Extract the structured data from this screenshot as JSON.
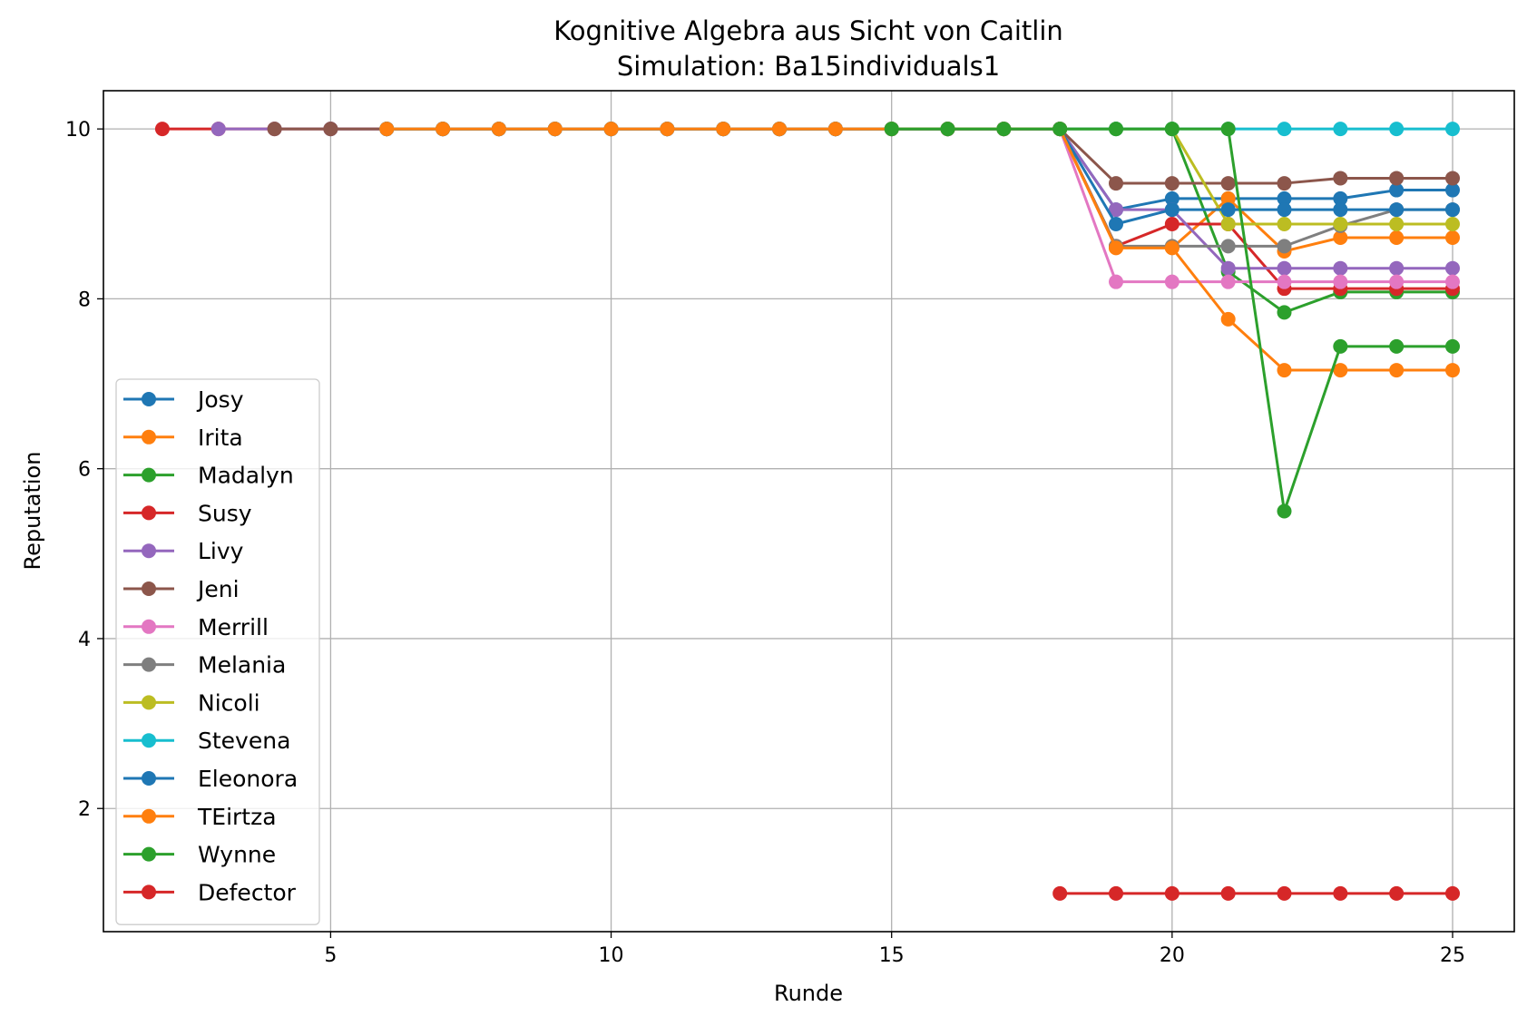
{
  "chart_data": {
    "type": "line",
    "title": "Kognitive Algebra aus Sicht von Caitlin",
    "subtitle": "Simulation: Ba15individuals1",
    "xlabel": "Runde",
    "ylabel": "Reputation",
    "xlim": [
      0.95,
      26.1
    ],
    "ylim": [
      0.55,
      10.45
    ],
    "xticks": [
      5,
      10,
      15,
      20,
      25
    ],
    "yticks": [
      2,
      4,
      6,
      8,
      10
    ],
    "grid": true,
    "legend_position": "lower-left",
    "series": [
      {
        "name": "Josy",
        "color": "#1f77b4",
        "x": [
          5,
          6,
          7,
          8,
          9,
          10,
          11,
          12,
          13,
          14,
          15,
          16,
          17,
          18,
          19,
          20,
          21,
          22,
          23,
          24,
          25
        ],
        "y": [
          10,
          10,
          10,
          10,
          10,
          10,
          10,
          10,
          10,
          10,
          10,
          10,
          10,
          10,
          9.05,
          9.18,
          9.18,
          9.18,
          9.18,
          9.28,
          9.28
        ]
      },
      {
        "name": "Irita",
        "color": "#ff7f0e",
        "x": [
          6,
          7,
          8,
          9,
          10,
          11,
          12,
          13,
          14,
          15,
          16,
          17,
          18,
          19,
          20,
          21,
          22,
          23,
          24,
          25
        ],
        "y": [
          10,
          10,
          10,
          10,
          10,
          10,
          10,
          10,
          10,
          10,
          10,
          10,
          10,
          8.6,
          8.6,
          9.18,
          8.56,
          8.72,
          8.72,
          8.72
        ]
      },
      {
        "name": "Madalyn",
        "color": "#2ca02c",
        "x": [
          15,
          16,
          17,
          18,
          19,
          20,
          21,
          22,
          23,
          24,
          25
        ],
        "y": [
          10,
          10,
          10,
          10,
          10,
          10,
          8.32,
          7.84,
          8.08,
          8.08,
          8.08
        ]
      },
      {
        "name": "Susy",
        "color": "#d62728",
        "x": [
          2,
          3,
          4,
          5,
          6,
          7,
          8,
          9,
          10,
          11,
          12,
          13,
          14,
          15,
          16,
          17,
          18,
          19,
          20,
          21,
          22,
          23,
          24,
          25
        ],
        "y": [
          10,
          10,
          10,
          10,
          10,
          10,
          10,
          10,
          10,
          10,
          10,
          10,
          10,
          10,
          10,
          10,
          10,
          8.62,
          8.88,
          8.88,
          8.12,
          8.12,
          8.12,
          8.12
        ]
      },
      {
        "name": "Livy",
        "color": "#9467bd",
        "x": [
          3,
          4,
          5,
          6,
          7,
          8,
          9,
          10,
          11,
          12,
          13,
          14,
          15,
          16,
          17,
          18,
          19,
          20,
          21,
          22,
          23,
          24,
          25
        ],
        "y": [
          10,
          10,
          10,
          10,
          10,
          10,
          10,
          10,
          10,
          10,
          10,
          10,
          10,
          10,
          10,
          10,
          9.05,
          9.05,
          8.36,
          8.36,
          8.36,
          8.36,
          8.36
        ]
      },
      {
        "name": "Jeni",
        "color": "#8c564b",
        "x": [
          4,
          5,
          6,
          7,
          8,
          9,
          10,
          11,
          12,
          13,
          14,
          15,
          16,
          17,
          18,
          19,
          20,
          21,
          22,
          23,
          24,
          25
        ],
        "y": [
          10,
          10,
          10,
          10,
          10,
          10,
          10,
          10,
          10,
          10,
          10,
          10,
          10,
          10,
          10,
          9.36,
          9.36,
          9.36,
          9.36,
          9.42,
          9.42,
          9.42
        ]
      },
      {
        "name": "Merrill",
        "color": "#e377c2",
        "x": [
          6,
          7,
          8,
          9,
          10,
          11,
          12,
          13,
          14,
          15,
          16,
          17,
          18,
          19,
          20,
          21,
          22,
          23,
          24,
          25
        ],
        "y": [
          10,
          10,
          10,
          10,
          10,
          10,
          10,
          10,
          10,
          10,
          10,
          10,
          10,
          8.2,
          8.2,
          8.2,
          8.2,
          8.2,
          8.2,
          8.2
        ]
      },
      {
        "name": "Melania",
        "color": "#7f7f7f",
        "x": [
          6,
          7,
          8,
          9,
          10,
          11,
          12,
          13,
          14,
          15,
          16,
          17,
          18,
          19,
          20,
          21,
          22,
          23,
          24,
          25
        ],
        "y": [
          10,
          10,
          10,
          10,
          10,
          10,
          10,
          10,
          10,
          10,
          10,
          10,
          10,
          8.62,
          8.62,
          8.62,
          8.62,
          8.86,
          9.05,
          9.05
        ]
      },
      {
        "name": "Nicoli",
        "color": "#bcbd22",
        "x": [
          6,
          7,
          8,
          9,
          10,
          11,
          12,
          13,
          14,
          15,
          16,
          17,
          18,
          19,
          20,
          21,
          22,
          23,
          24,
          25
        ],
        "y": [
          10,
          10,
          10,
          10,
          10,
          10,
          10,
          10,
          10,
          10,
          10,
          10,
          10,
          10,
          10,
          8.88,
          8.88,
          8.88,
          8.88,
          8.88
        ]
      },
      {
        "name": "Stevena",
        "color": "#17becf",
        "x": [
          6,
          7,
          8,
          9,
          10,
          11,
          12,
          13,
          14,
          15,
          16,
          17,
          18,
          19,
          20,
          21,
          22,
          23,
          24,
          25
        ],
        "y": [
          10,
          10,
          10,
          10,
          10,
          10,
          10,
          10,
          10,
          10,
          10,
          10,
          10,
          10,
          10,
          10,
          10,
          10,
          10,
          10
        ]
      },
      {
        "name": "Eleonora",
        "color": "#1f77b4",
        "x": [
          6,
          7,
          8,
          9,
          10,
          11,
          12,
          13,
          14,
          15,
          16,
          17,
          18,
          19,
          20,
          21,
          22,
          23,
          24,
          25
        ],
        "y": [
          10,
          10,
          10,
          10,
          10,
          10,
          10,
          10,
          10,
          10,
          10,
          10,
          10,
          8.88,
          9.05,
          9.05,
          9.05,
          9.05,
          9.05,
          9.05
        ]
      },
      {
        "name": "TEirtza",
        "color": "#ff7f0e",
        "x": [
          6,
          7,
          8,
          9,
          10,
          11,
          12,
          13,
          14,
          15,
          16,
          17,
          18,
          19,
          20,
          21,
          22,
          23,
          24,
          25
        ],
        "y": [
          10,
          10,
          10,
          10,
          10,
          10,
          10,
          10,
          10,
          10,
          10,
          10,
          10,
          8.6,
          8.6,
          7.76,
          7.16,
          7.16,
          7.16,
          7.16
        ]
      },
      {
        "name": "Wynne",
        "color": "#2ca02c",
        "x": [
          15,
          16,
          17,
          18,
          19,
          20,
          21,
          22,
          23,
          24,
          25
        ],
        "y": [
          10,
          10,
          10,
          10,
          10,
          10,
          10,
          5.5,
          7.44,
          7.44,
          7.44
        ]
      },
      {
        "name": "Defector",
        "color": "#d62728",
        "x": [
          18,
          19,
          20,
          21,
          22,
          23,
          24,
          25
        ],
        "y": [
          1,
          1,
          1,
          1,
          1,
          1,
          1,
          1
        ]
      }
    ]
  }
}
